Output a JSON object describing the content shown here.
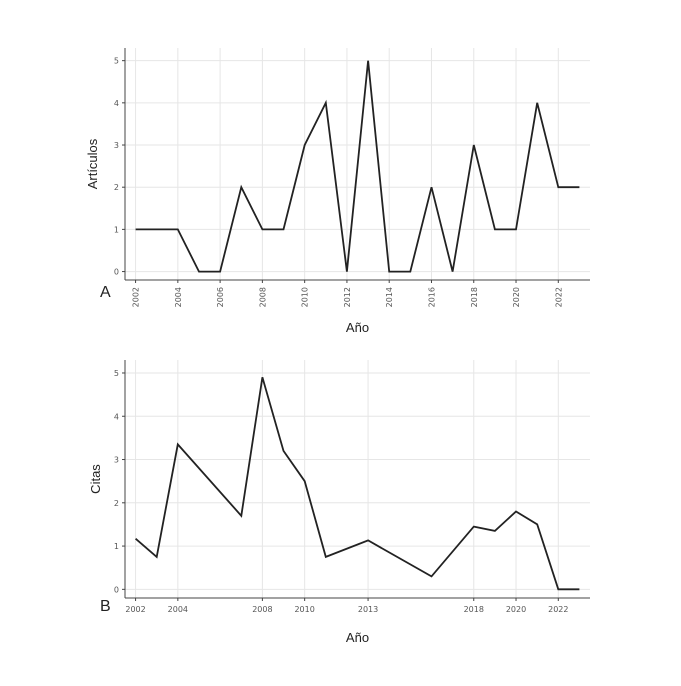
{
  "chart_data": [
    {
      "type": "line",
      "panel_label": "A",
      "xlabel": "Año",
      "ylabel": "Artículos",
      "xlim": [
        2001.5,
        2023.5
      ],
      "ylim": [
        -0.2,
        5.3
      ],
      "xticks": [
        2002,
        2004,
        2006,
        2008,
        2010,
        2012,
        2014,
        2016,
        2018,
        2020,
        2022
      ],
      "yticks": [
        0,
        1,
        2,
        3,
        4,
        5
      ],
      "grid": true,
      "x": [
        2002,
        2003,
        2004,
        2005,
        2006,
        2007,
        2008,
        2009,
        2010,
        2011,
        2012,
        2013,
        2014,
        2015,
        2016,
        2017,
        2018,
        2019,
        2020,
        2021,
        2022,
        2023
      ],
      "y": [
        1,
        1,
        1,
        0,
        0,
        2,
        1,
        1,
        3,
        4,
        0,
        5,
        0,
        0,
        2,
        0,
        3,
        1,
        1,
        4,
        2,
        2
      ],
      "color": "#222222"
    },
    {
      "type": "line",
      "panel_label": "B",
      "xlabel": "Año",
      "ylabel": "Citas",
      "xlim": [
        2001.5,
        2023.5
      ],
      "ylim": [
        -0.2,
        5.3
      ],
      "xticks": [
        2002,
        2004,
        2008,
        2010,
        2013,
        2018,
        2020,
        2022
      ],
      "yticks": [
        0,
        1,
        2,
        3,
        4,
        5
      ],
      "grid": true,
      "x": [
        2002,
        2003,
        2004,
        2007,
        2008,
        2009,
        2010,
        2011,
        2013,
        2016,
        2018,
        2019,
        2020,
        2021,
        2022,
        2023
      ],
      "y": [
        1.17,
        0.75,
        3.35,
        1.7,
        4.9,
        3.2,
        2.5,
        0.75,
        1.13,
        0.3,
        1.45,
        1.35,
        1.8,
        1.5,
        0.0,
        0.0
      ],
      "color": "#222222"
    }
  ]
}
